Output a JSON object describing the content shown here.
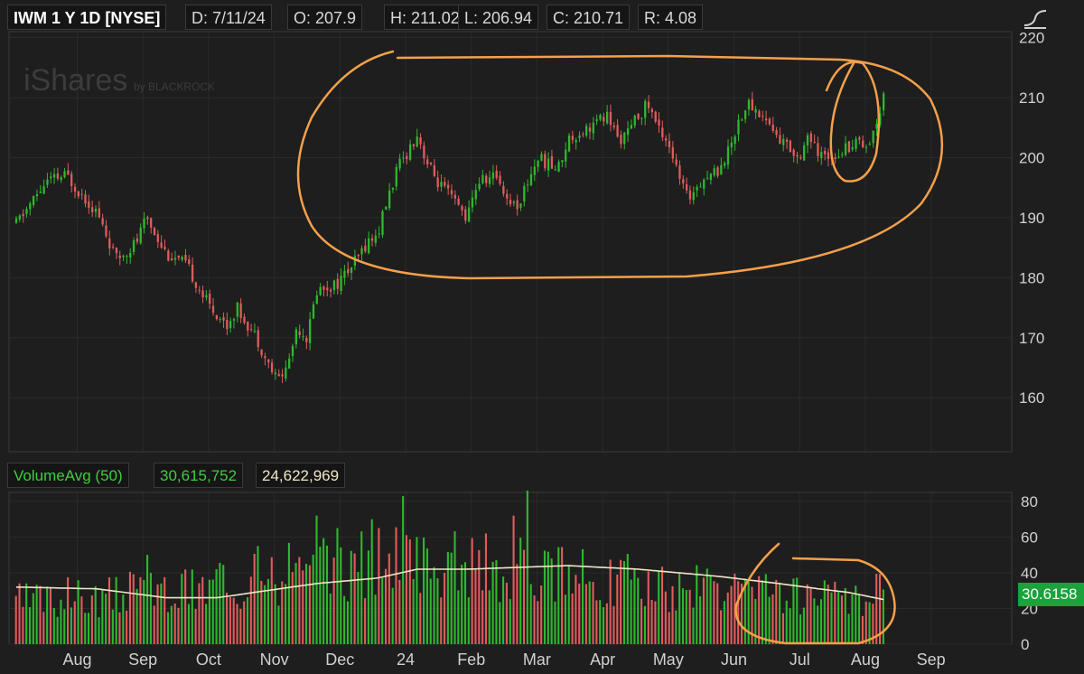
{
  "header": {
    "symbol": "IWM 1 Y 1D [NYSE]",
    "date": "D: 7/11/24",
    "open": "O: 207.9",
    "high": "H: 211.02",
    "low": "L: 206.94",
    "close": "C: 210.71",
    "range": "R: 4.08"
  },
  "watermark": {
    "brand": "iShares",
    "sub": "by BLACKROCK"
  },
  "volume_header": {
    "study": "VolumeAvg (50)",
    "volume": "30,615,752",
    "average": "24,622,969"
  },
  "last_volume_label": "30.6158",
  "colors": {
    "up": "#2eb82e",
    "down": "#e05c5c",
    "avg_line": "#f0e6c8",
    "annotation": "#f5a04a",
    "background": "#1e1e1e",
    "grid": "#2b2b2b"
  },
  "icons": [
    "chart-style-icon"
  ],
  "chart_data": [
    {
      "type": "candlestick",
      "title": "IWM 1 Y 1D [NYSE]",
      "x_tick_labels": [
        "Aug",
        "Sep",
        "Oct",
        "Nov",
        "Dec",
        "24",
        "Feb",
        "Mar",
        "Apr",
        "May",
        "Jun",
        "Jul",
        "Aug",
        "Sep"
      ],
      "y_ticks": [
        160,
        170,
        180,
        190,
        200,
        210,
        220
      ],
      "ylim": [
        151,
        221
      ],
      "last_bar": {
        "date": "7/11/24",
        "open": 207.9,
        "high": 211.02,
        "low": 206.94,
        "close": 210.71
      },
      "close_path": [
        {
          "x": 0,
          "close": 189
        },
        {
          "x": 0.03,
          "close": 196
        },
        {
          "x": 0.05,
          "close": 197
        },
        {
          "x": 0.06,
          "close": 195
        },
        {
          "x": 0.08,
          "close": 191
        },
        {
          "x": 0.1,
          "close": 183
        },
        {
          "x": 0.12,
          "close": 186
        },
        {
          "x": 0.13,
          "close": 190
        },
        {
          "x": 0.15,
          "close": 184
        },
        {
          "x": 0.17,
          "close": 182
        },
        {
          "x": 0.19,
          "close": 176
        },
        {
          "x": 0.21,
          "close": 172
        },
        {
          "x": 0.22,
          "close": 175
        },
        {
          "x": 0.24,
          "close": 170
        },
        {
          "x": 0.25,
          "close": 166
        },
        {
          "x": 0.26,
          "close": 163
        },
        {
          "x": 0.27,
          "close": 165
        },
        {
          "x": 0.28,
          "close": 172
        },
        {
          "x": 0.29,
          "close": 170
        },
        {
          "x": 0.3,
          "close": 178
        },
        {
          "x": 0.32,
          "close": 179
        },
        {
          "x": 0.34,
          "close": 183
        },
        {
          "x": 0.35,
          "close": 186
        },
        {
          "x": 0.36,
          "close": 187
        },
        {
          "x": 0.37,
          "close": 193
        },
        {
          "x": 0.38,
          "close": 198
        },
        {
          "x": 0.4,
          "close": 204
        },
        {
          "x": 0.41,
          "close": 199
        },
        {
          "x": 0.42,
          "close": 196
        },
        {
          "x": 0.44,
          "close": 192
        },
        {
          "x": 0.45,
          "close": 190
        },
        {
          "x": 0.46,
          "close": 196
        },
        {
          "x": 0.48,
          "close": 197
        },
        {
          "x": 0.49,
          "close": 193
        },
        {
          "x": 0.5,
          "close": 192
        },
        {
          "x": 0.52,
          "close": 200
        },
        {
          "x": 0.54,
          "close": 198
        },
        {
          "x": 0.55,
          "close": 203
        },
        {
          "x": 0.57,
          "close": 205
        },
        {
          "x": 0.59,
          "close": 207
        },
        {
          "x": 0.6,
          "close": 203
        },
        {
          "x": 0.61,
          "close": 204
        },
        {
          "x": 0.62,
          "close": 207
        },
        {
          "x": 0.63,
          "close": 209
        },
        {
          "x": 0.64,
          "close": 205
        },
        {
          "x": 0.65,
          "close": 203
        },
        {
          "x": 0.66,
          "close": 197
        },
        {
          "x": 0.67,
          "close": 193
        },
        {
          "x": 0.68,
          "close": 196
        },
        {
          "x": 0.7,
          "close": 198
        },
        {
          "x": 0.71,
          "close": 201
        },
        {
          "x": 0.72,
          "close": 206
        },
        {
          "x": 0.73,
          "close": 209
        },
        {
          "x": 0.75,
          "close": 206
        },
        {
          "x": 0.76,
          "close": 203
        },
        {
          "x": 0.77,
          "close": 202
        },
        {
          "x": 0.78,
          "close": 200
        },
        {
          "x": 0.79,
          "close": 204
        },
        {
          "x": 0.8,
          "close": 200
        },
        {
          "x": 0.82,
          "close": 201
        },
        {
          "x": 0.83,
          "close": 202
        },
        {
          "x": 0.84,
          "close": 203
        },
        {
          "x": 0.85,
          "close": 202
        },
        {
          "x": 0.86,
          "close": 207
        },
        {
          "x": 0.865,
          "close": 210.7
        }
      ]
    },
    {
      "type": "bar",
      "title": "VolumeAvg (50)",
      "y_ticks": [
        0,
        20,
        40,
        60,
        80
      ],
      "ylim": [
        0,
        85
      ],
      "volume_path": [
        {
          "x": 0,
          "volume": 25
        },
        {
          "x": 0.1,
          "volume": 28
        },
        {
          "x": 0.2,
          "volume": 33
        },
        {
          "x": 0.28,
          "volume": 40
        },
        {
          "x": 0.35,
          "volume": 45
        },
        {
          "x": 0.4,
          "volume": 46
        },
        {
          "x": 0.48,
          "volume": 43
        },
        {
          "x": 0.55,
          "volume": 40
        },
        {
          "x": 0.65,
          "volume": 32
        },
        {
          "x": 0.75,
          "volume": 28
        },
        {
          "x": 0.85,
          "volume": 25
        },
        {
          "x": 0.865,
          "volume": 30.6
        }
      ],
      "spikes": [
        {
          "x": 0.3,
          "volume": 72
        },
        {
          "x": 0.32,
          "volume": 65
        },
        {
          "x": 0.355,
          "volume": 70
        },
        {
          "x": 0.385,
          "volume": 83
        },
        {
          "x": 0.4,
          "volume": 60
        },
        {
          "x": 0.47,
          "volume": 62
        },
        {
          "x": 0.495,
          "volume": 72
        },
        {
          "x": 0.51,
          "volume": 86
        },
        {
          "x": 0.13,
          "volume": 50
        },
        {
          "x": 0.2,
          "volume": 42
        },
        {
          "x": 0.24,
          "volume": 55
        }
      ],
      "avg_path": [
        {
          "x": 0,
          "avg": 32
        },
        {
          "x": 0.08,
          "avg": 31
        },
        {
          "x": 0.15,
          "avg": 26
        },
        {
          "x": 0.2,
          "avg": 26
        },
        {
          "x": 0.25,
          "avg": 30
        },
        {
          "x": 0.3,
          "avg": 34
        },
        {
          "x": 0.36,
          "avg": 37
        },
        {
          "x": 0.4,
          "avg": 42
        },
        {
          "x": 0.45,
          "avg": 42
        },
        {
          "x": 0.5,
          "avg": 43
        },
        {
          "x": 0.55,
          "avg": 44
        },
        {
          "x": 0.62,
          "avg": 42
        },
        {
          "x": 0.7,
          "avg": 38
        },
        {
          "x": 0.76,
          "avg": 34
        },
        {
          "x": 0.8,
          "avg": 31
        },
        {
          "x": 0.83,
          "avg": 29
        },
        {
          "x": 0.865,
          "avg": 25
        }
      ],
      "last_volume": 30.6158
    }
  ]
}
